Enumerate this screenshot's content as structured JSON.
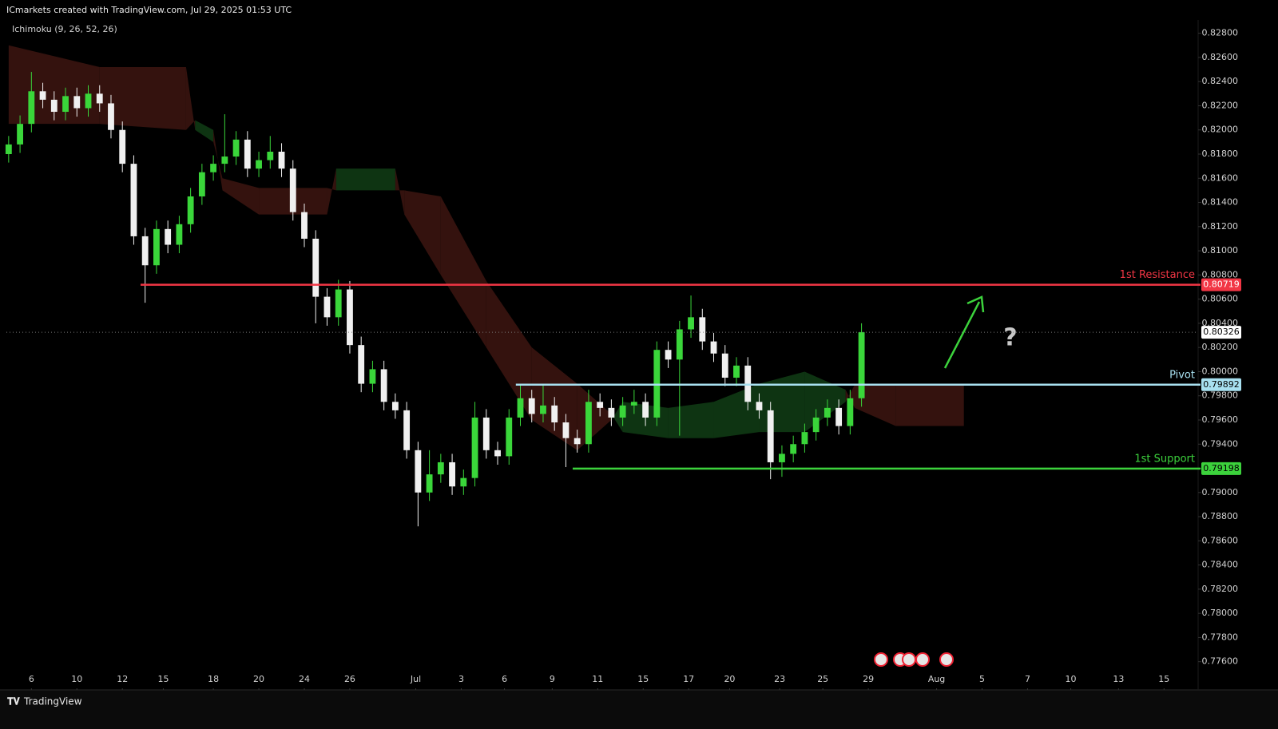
{
  "chart_data": {
    "type": "candlestick",
    "title": "ICmarkets created with TradingView.com, Jul 29, 2025 01:53 UTC",
    "indicator": "Ichimoku (9, 26, 52, 26)",
    "brand": "TradingView",
    "up_color": "#3ad63a",
    "down_color": "#f0f0f0",
    "xlim": [
      -1.1,
      51.3
    ],
    "ylim": [
      0.7738,
      0.8291
    ],
    "xticks": [
      {
        "value": 0,
        "label": "6"
      },
      {
        "value": 2,
        "label": "10"
      },
      {
        "value": 4,
        "label": "12"
      },
      {
        "value": 5.8,
        "label": "15"
      },
      {
        "value": 8,
        "label": "18"
      },
      {
        "value": 10,
        "label": "20"
      },
      {
        "value": 12,
        "label": "24"
      },
      {
        "value": 14,
        "label": "26"
      },
      {
        "value": 16.9,
        "label": "Jul"
      },
      {
        "value": 18.9,
        "label": "3"
      },
      {
        "value": 20.8,
        "label": "6"
      },
      {
        "value": 22.9,
        "label": "9"
      },
      {
        "value": 24.9,
        "label": "11"
      },
      {
        "value": 26.9,
        "label": "15"
      },
      {
        "value": 28.9,
        "label": "17"
      },
      {
        "value": 30.7,
        "label": "20"
      },
      {
        "value": 32.9,
        "label": "23"
      },
      {
        "value": 34.8,
        "label": "25"
      },
      {
        "value": 36.8,
        "label": "29"
      },
      {
        "value": 39.8,
        "label": "Aug"
      },
      {
        "value": 41.8,
        "label": "5"
      },
      {
        "value": 43.8,
        "label": "7"
      },
      {
        "value": 45.7,
        "label": "10"
      },
      {
        "value": 47.8,
        "label": "13"
      },
      {
        "value": 49.8,
        "label": "15"
      }
    ],
    "yticks": [
      {
        "value": 0.828,
        "label": "0.82800"
      },
      {
        "value": 0.826,
        "label": "0.82600"
      },
      {
        "value": 0.824,
        "label": "0.82400"
      },
      {
        "value": 0.822,
        "label": "0.82200"
      },
      {
        "value": 0.82,
        "label": "0.82000"
      },
      {
        "value": 0.818,
        "label": "0.81800"
      },
      {
        "value": 0.816,
        "label": "0.81600"
      },
      {
        "value": 0.814,
        "label": "0.81400"
      },
      {
        "value": 0.812,
        "label": "0.81200"
      },
      {
        "value": 0.81,
        "label": "0.81000"
      },
      {
        "value": 0.808,
        "label": "0.80800"
      },
      {
        "value": 0.806,
        "label": "0.80600"
      },
      {
        "value": 0.804,
        "label": "0.80400"
      },
      {
        "value": 0.802,
        "label": "0.80200"
      },
      {
        "value": 0.8,
        "label": "0.80000"
      },
      {
        "value": 0.798,
        "label": "0.79800"
      },
      {
        "value": 0.796,
        "label": "0.79600"
      },
      {
        "value": 0.794,
        "label": "0.79400"
      },
      {
        "value": 0.792,
        "label": "0.79200"
      },
      {
        "value": 0.79,
        "label": "0.79000"
      },
      {
        "value": 0.788,
        "label": "0.78800"
      },
      {
        "value": 0.786,
        "label": "0.78600"
      },
      {
        "value": 0.784,
        "label": "0.78400"
      },
      {
        "value": 0.782,
        "label": "0.78200"
      },
      {
        "value": 0.78,
        "label": "0.78000"
      },
      {
        "value": 0.778,
        "label": "0.77800"
      },
      {
        "value": 0.776,
        "label": "0.77600"
      }
    ],
    "x": [
      -1,
      -0.5,
      0,
      0.5,
      1,
      1.5,
      2,
      2.5,
      3,
      3.5,
      4,
      4.5,
      5,
      5.5,
      6,
      6.5,
      7,
      7.5,
      8,
      8.5,
      9,
      9.5,
      10,
      10.5,
      11,
      11.5,
      12,
      12.5,
      13,
      13.5,
      14,
      14.5,
      15,
      15.5,
      16,
      16.5,
      17,
      17.5,
      18,
      18.5,
      19,
      19.5,
      20,
      20.5,
      21,
      21.5,
      22,
      22.5,
      23,
      23.5,
      24,
      24.5,
      25,
      25.5,
      26,
      26.5,
      27,
      27.5,
      28,
      28.5,
      29,
      29.5,
      30,
      30.5,
      31,
      31.5,
      32,
      32.5,
      33,
      33.5,
      34,
      34.5,
      35,
      35.5,
      36,
      36.5
    ],
    "open": [
      0.818,
      0.8188,
      0.8205,
      0.8232,
      0.8225,
      0.8215,
      0.8228,
      0.8218,
      0.823,
      0.8222,
      0.82,
      0.8172,
      0.8112,
      0.8088,
      0.8118,
      0.8105,
      0.8122,
      0.8145,
      0.8165,
      0.8172,
      0.8178,
      0.8192,
      0.8168,
      0.8175,
      0.8182,
      0.8168,
      0.8132,
      0.811,
      0.8062,
      0.8045,
      0.8068,
      0.8022,
      0.799,
      0.8002,
      0.7975,
      0.7968,
      0.7935,
      0.79,
      0.7915,
      0.7925,
      0.7905,
      0.7912,
      0.7962,
      0.7935,
      0.793,
      0.7962,
      0.7978,
      0.7965,
      0.7972,
      0.7958,
      0.7945,
      0.794,
      0.7975,
      0.797,
      0.7962,
      0.7972,
      0.7975,
      0.7962,
      0.8018,
      0.801,
      0.8035,
      0.8045,
      0.8025,
      0.8015,
      0.7995,
      0.8005,
      0.7975,
      0.7968,
      0.7925,
      0.7932,
      0.794,
      0.795,
      0.7962,
      0.797,
      0.7955,
      0.7978
    ],
    "high": [
      0.8195,
      0.8212,
      0.8248,
      0.8239,
      0.8232,
      0.8235,
      0.8235,
      0.8237,
      0.8237,
      0.8229,
      0.8207,
      0.8179,
      0.8119,
      0.8125,
      0.8125,
      0.8129,
      0.8152,
      0.8172,
      0.8179,
      0.8213,
      0.8199,
      0.8199,
      0.8182,
      0.8195,
      0.8189,
      0.8175,
      0.8139,
      0.8117,
      0.8069,
      0.8076,
      0.8075,
      0.8029,
      0.8009,
      0.8009,
      0.7982,
      0.7975,
      0.7942,
      0.7935,
      0.7932,
      0.7932,
      0.7919,
      0.7975,
      0.7969,
      0.7942,
      0.7969,
      0.799,
      0.7985,
      0.799,
      0.7979,
      0.7965,
      0.7952,
      0.7985,
      0.7982,
      0.7977,
      0.7979,
      0.7985,
      0.7982,
      0.8025,
      0.8025,
      0.8042,
      0.8063,
      0.8052,
      0.8032,
      0.8022,
      0.8012,
      0.8012,
      0.7982,
      0.7975,
      0.7939,
      0.7947,
      0.7957,
      0.7969,
      0.7977,
      0.7977,
      0.7985,
      0.804
    ],
    "low": [
      0.8173,
      0.8181,
      0.8198,
      0.8218,
      0.8208,
      0.8208,
      0.8211,
      0.8211,
      0.8215,
      0.8193,
      0.8165,
      0.8105,
      0.8057,
      0.8081,
      0.8098,
      0.8098,
      0.8115,
      0.8138,
      0.8158,
      0.8165,
      0.8171,
      0.8161,
      0.8161,
      0.8168,
      0.8161,
      0.8125,
      0.8103,
      0.804,
      0.8038,
      0.8038,
      0.8015,
      0.7983,
      0.7983,
      0.7968,
      0.7961,
      0.7928,
      0.7872,
      0.7893,
      0.7908,
      0.7898,
      0.7898,
      0.7905,
      0.7928,
      0.7923,
      0.7923,
      0.7955,
      0.7958,
      0.7958,
      0.7951,
      0.7921,
      0.7933,
      0.7933,
      0.7963,
      0.7955,
      0.7955,
      0.7965,
      0.7955,
      0.7955,
      0.8003,
      0.7947,
      0.8028,
      0.8018,
      0.8008,
      0.7988,
      0.7988,
      0.7968,
      0.7961,
      0.7911,
      0.7913,
      0.7925,
      0.7933,
      0.7943,
      0.7955,
      0.7948,
      0.7948,
      0.7971
    ],
    "close": [
      0.8188,
      0.8205,
      0.8232,
      0.8225,
      0.8215,
      0.8228,
      0.8218,
      0.823,
      0.8222,
      0.82,
      0.8172,
      0.8112,
      0.8088,
      0.8118,
      0.8105,
      0.8122,
      0.8145,
      0.8165,
      0.8172,
      0.8178,
      0.8192,
      0.8168,
      0.8175,
      0.8182,
      0.8168,
      0.8132,
      0.811,
      0.8062,
      0.8045,
      0.8068,
      0.8022,
      0.799,
      0.8002,
      0.7975,
      0.7968,
      0.7935,
      0.79,
      0.7915,
      0.7925,
      0.7905,
      0.7912,
      0.7962,
      0.7935,
      0.793,
      0.7962,
      0.7978,
      0.7965,
      0.7972,
      0.7958,
      0.7945,
      0.794,
      0.7975,
      0.797,
      0.7962,
      0.7972,
      0.7975,
      0.7962,
      0.8018,
      0.801,
      0.8035,
      0.8045,
      0.8025,
      0.8015,
      0.7995,
      0.8005,
      0.7975,
      0.7968,
      0.7925,
      0.7932,
      0.794,
      0.795,
      0.7962,
      0.797,
      0.7955,
      0.7978,
      0.80326
    ],
    "cloud": {
      "bull_color": "#103a14",
      "bear_color": "#3a1410",
      "x": [
        -1,
        3,
        6.8,
        7.2,
        8,
        8.4,
        10,
        13,
        13.4,
        16,
        16.4,
        18,
        20,
        22,
        24,
        25.5,
        26,
        28,
        30,
        32,
        34,
        35.8,
        36.2,
        38,
        41
      ],
      "span_a": [
        0.8205,
        0.8205,
        0.82,
        0.8208,
        0.82,
        0.815,
        0.813,
        0.813,
        0.8168,
        0.8168,
        0.813,
        0.808,
        0.802,
        0.796,
        0.7935,
        0.796,
        0.7975,
        0.797,
        0.7975,
        0.799,
        0.8,
        0.7985,
        0.797,
        0.7955,
        0.7955
      ],
      "span_b": [
        0.827,
        0.8252,
        0.8252,
        0.82,
        0.819,
        0.816,
        0.8152,
        0.8152,
        0.815,
        0.815,
        0.815,
        0.8145,
        0.8075,
        0.802,
        0.799,
        0.7965,
        0.795,
        0.7945,
        0.7945,
        0.795,
        0.795,
        0.7975,
        0.7989,
        0.7989,
        0.7989
      ]
    },
    "last_price": 0.80326,
    "levels": [
      {
        "name": "1st Resistance",
        "value": 0.80719,
        "x_start": 4.8,
        "color": "#f23645"
      },
      {
        "name": "Pivot",
        "value": 0.79892,
        "x_start": 21.3,
        "color": "#a8e0f0"
      },
      {
        "name": "1st Support",
        "value": 0.79198,
        "x_start": 23.8,
        "color": "#3cd23c"
      }
    ],
    "annotation": "?"
  }
}
